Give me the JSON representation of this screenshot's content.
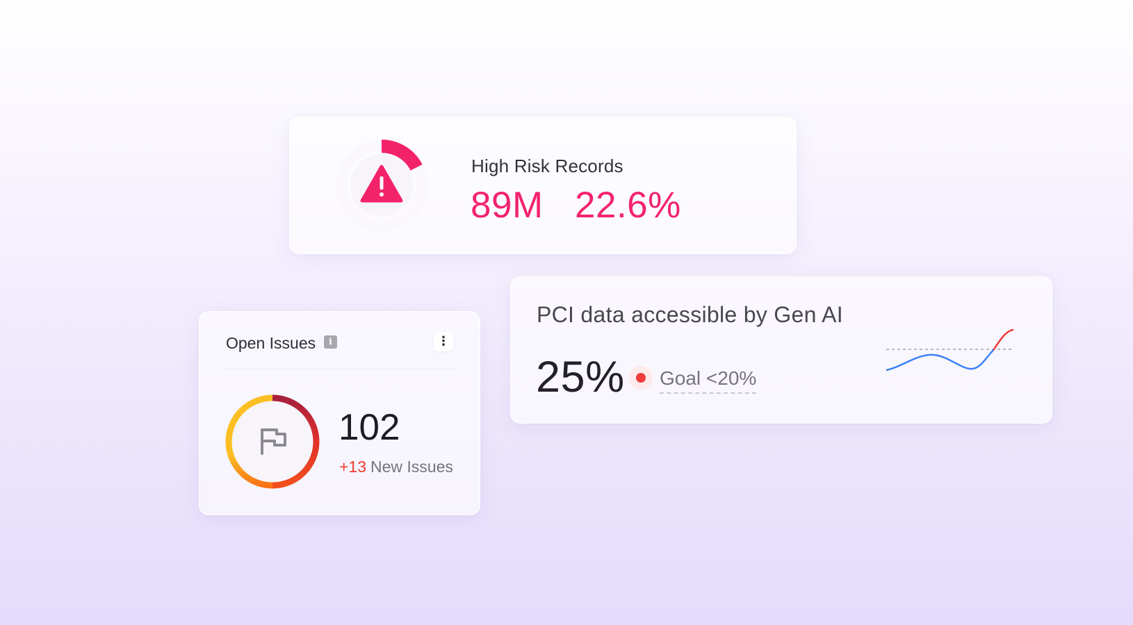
{
  "colors": {
    "risk_accent": "#f3236a",
    "issues_new": "#ef3b2c",
    "sparkline_blue": "#3b82f6",
    "sparkline_red": "#ef3b3b",
    "donut_yellow": "#fbbf24",
    "donut_orange": "#f97316",
    "donut_red": "#e2312a",
    "donut_crimson": "#a61e3c"
  },
  "risk_card": {
    "title": "High Risk Records",
    "count": "89M",
    "percent": "22.6%",
    "percent_value": 22.6,
    "icon": "warning-icon"
  },
  "issues_card": {
    "title": "Open Issues",
    "info_icon_text": "i",
    "more_icon": "more-vertical-icon",
    "more_glyph": "⋮",
    "count": "102",
    "new_count": "+13",
    "new_label": "New Issues",
    "center_icon": "flag-icon"
  },
  "pci_card": {
    "title": "PCI data accessible by Gen AI",
    "value": "25%",
    "goal": "Goal <20%",
    "status": "above-goal",
    "sparkline_icon": "trend-sparkline"
  }
}
